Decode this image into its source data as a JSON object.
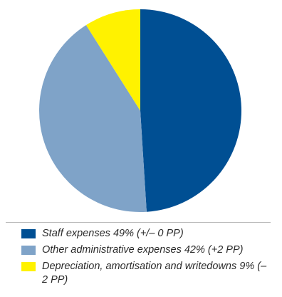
{
  "chart_data": {
    "type": "pie",
    "title": "",
    "series": [
      {
        "name": "",
        "values": [
          49,
          42,
          9
        ]
      }
    ],
    "slices": [
      {
        "label": "Staff expenses 49% (+/– 0 PP)",
        "value": 49,
        "color": "#004f93"
      },
      {
        "label": "Other administrative expenses 42% (+2 PP)",
        "value": 42,
        "color": "#7fa3c8"
      },
      {
        "label": "Depreciation, amortisation and writedowns 9% (–2 PP)",
        "value": 9,
        "color": "#fff200"
      }
    ],
    "legend_placement": "bottom",
    "start_angle_deg": 0,
    "direction": "clockwise"
  }
}
